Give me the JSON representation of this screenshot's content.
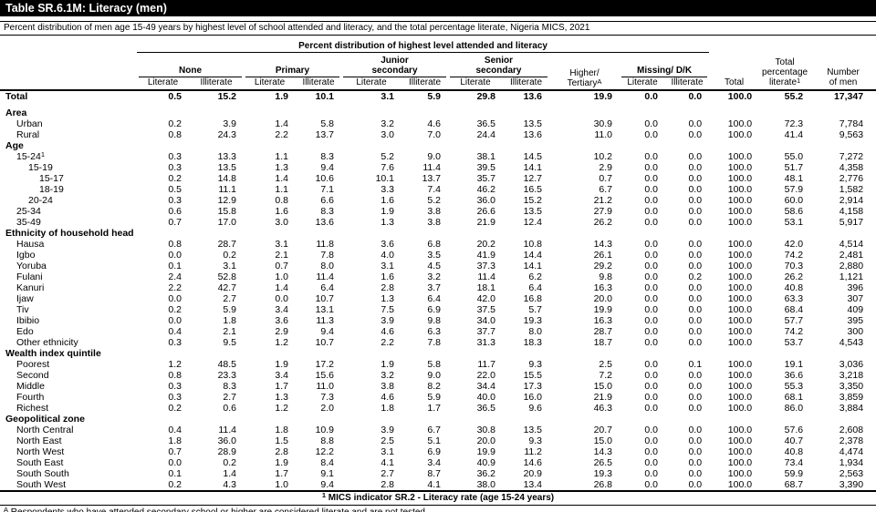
{
  "title": "Table SR.6.1M: Literacy (men)",
  "subtitle": "Percent distribution of men age 15-49 years by highest level of school attended and literacy, and the total percentage literate, Nigeria MICS, 2021",
  "header": {
    "span_title": "Percent distribution of highest level attended and literacy",
    "groups": [
      "None",
      "Primary",
      "Junior\nsecondary",
      "Senior\nsecondary"
    ],
    "missing_group": "Missing/ D/K",
    "higher_line1": "Higher/",
    "higher_line2": "Tertiary",
    "higher_sup": "A",
    "literate": "Literate",
    "illiterate": "Illiterate",
    "total": "Total",
    "pct_line1": "Total",
    "pct_line2": "percentage",
    "pct_line3": "literate",
    "pct_sup": "1",
    "num_line1": "Number",
    "num_line2": "of men"
  },
  "rows": [
    {
      "type": "total",
      "label": "Total",
      "values": [
        "0.5",
        "15.2",
        "1.9",
        "10.1",
        "3.1",
        "5.9",
        "29.8",
        "13.6",
        "19.9",
        "0.0",
        "0.0",
        "100.0",
        "55.2",
        "17,347"
      ]
    },
    {
      "type": "gap"
    },
    {
      "type": "section",
      "label": "Area"
    },
    {
      "type": "data",
      "indent": 1,
      "label": "Urban",
      "values": [
        "0.2",
        "3.9",
        "1.4",
        "5.8",
        "3.2",
        "4.6",
        "36.5",
        "13.5",
        "30.9",
        "0.0",
        "0.0",
        "100.0",
        "72.3",
        "7,784"
      ]
    },
    {
      "type": "data",
      "indent": 1,
      "label": "Rural",
      "values": [
        "0.8",
        "24.3",
        "2.2",
        "13.7",
        "3.0",
        "7.0",
        "24.4",
        "13.6",
        "11.0",
        "0.0",
        "0.0",
        "100.0",
        "41.4",
        "9,563"
      ]
    },
    {
      "type": "section",
      "label": "Age"
    },
    {
      "type": "data",
      "indent": 1,
      "label": "15-24",
      "sup": "1",
      "values": [
        "0.3",
        "13.3",
        "1.1",
        "8.3",
        "5.2",
        "9.0",
        "38.1",
        "14.5",
        "10.2",
        "0.0",
        "0.0",
        "100.0",
        "55.0",
        "7,272"
      ]
    },
    {
      "type": "data",
      "indent": 2,
      "label": "15-19",
      "values": [
        "0.3",
        "13.5",
        "1.3",
        "9.4",
        "7.6",
        "11.4",
        "39.5",
        "14.1",
        "2.9",
        "0.0",
        "0.0",
        "100.0",
        "51.7",
        "4,358"
      ]
    },
    {
      "type": "data",
      "indent": 3,
      "label": "15-17",
      "values": [
        "0.2",
        "14.8",
        "1.4",
        "10.6",
        "10.1",
        "13.7",
        "35.7",
        "12.7",
        "0.7",
        "0.0",
        "0.0",
        "100.0",
        "48.1",
        "2,776"
      ]
    },
    {
      "type": "data",
      "indent": 3,
      "label": "18-19",
      "values": [
        "0.5",
        "11.1",
        "1.1",
        "7.1",
        "3.3",
        "7.4",
        "46.2",
        "16.5",
        "6.7",
        "0.0",
        "0.0",
        "100.0",
        "57.9",
        "1,582"
      ]
    },
    {
      "type": "data",
      "indent": 2,
      "label": "20-24",
      "values": [
        "0.3",
        "12.9",
        "0.8",
        "6.6",
        "1.6",
        "5.2",
        "36.0",
        "15.2",
        "21.2",
        "0.0",
        "0.0",
        "100.0",
        "60.0",
        "2,914"
      ]
    },
    {
      "type": "data",
      "indent": 1,
      "label": "25-34",
      "values": [
        "0.6",
        "15.8",
        "1.6",
        "8.3",
        "1.9",
        "3.8",
        "26.6",
        "13.5",
        "27.9",
        "0.0",
        "0.0",
        "100.0",
        "58.6",
        "4,158"
      ]
    },
    {
      "type": "data",
      "indent": 1,
      "label": "35-49",
      "values": [
        "0.7",
        "17.0",
        "3.0",
        "13.6",
        "1.3",
        "3.8",
        "21.9",
        "12.4",
        "26.2",
        "0.0",
        "0.0",
        "100.0",
        "53.1",
        "5,917"
      ]
    },
    {
      "type": "section",
      "label": "Ethnicity of household head"
    },
    {
      "type": "data",
      "indent": 1,
      "label": "Hausa",
      "values": [
        "0.8",
        "28.7",
        "3.1",
        "11.8",
        "3.6",
        "6.8",
        "20.2",
        "10.8",
        "14.3",
        "0.0",
        "0.0",
        "100.0",
        "42.0",
        "4,514"
      ]
    },
    {
      "type": "data",
      "indent": 1,
      "label": "Igbo",
      "values": [
        "0.0",
        "0.2",
        "2.1",
        "7.8",
        "4.0",
        "3.5",
        "41.9",
        "14.4",
        "26.1",
        "0.0",
        "0.0",
        "100.0",
        "74.2",
        "2,481"
      ]
    },
    {
      "type": "data",
      "indent": 1,
      "label": "Yoruba",
      "values": [
        "0.1",
        "3.1",
        "0.7",
        "8.0",
        "3.1",
        "4.5",
        "37.3",
        "14.1",
        "29.2",
        "0.0",
        "0.0",
        "100.0",
        "70.3",
        "2,880"
      ]
    },
    {
      "type": "data",
      "indent": 1,
      "label": "Fulani",
      "values": [
        "2.4",
        "52.8",
        "1.0",
        "11.4",
        "1.6",
        "3.2",
        "11.4",
        "6.2",
        "9.8",
        "0.0",
        "0.2",
        "100.0",
        "26.2",
        "1,121"
      ]
    },
    {
      "type": "data",
      "indent": 1,
      "label": "Kanuri",
      "values": [
        "2.2",
        "42.7",
        "1.4",
        "6.4",
        "2.8",
        "3.7",
        "18.1",
        "6.4",
        "16.3",
        "0.0",
        "0.0",
        "100.0",
        "40.8",
        "396"
      ]
    },
    {
      "type": "data",
      "indent": 1,
      "label": "Ijaw",
      "values": [
        "0.0",
        "2.7",
        "0.0",
        "10.7",
        "1.3",
        "6.4",
        "42.0",
        "16.8",
        "20.0",
        "0.0",
        "0.0",
        "100.0",
        "63.3",
        "307"
      ]
    },
    {
      "type": "data",
      "indent": 1,
      "label": "Tiv",
      "values": [
        "0.2",
        "5.9",
        "3.4",
        "13.1",
        "7.5",
        "6.9",
        "37.5",
        "5.7",
        "19.9",
        "0.0",
        "0.0",
        "100.0",
        "68.4",
        "409"
      ]
    },
    {
      "type": "data",
      "indent": 1,
      "label": "Ibibio",
      "values": [
        "0.0",
        "1.8",
        "3.6",
        "11.3",
        "3.9",
        "9.8",
        "34.0",
        "19.3",
        "16.3",
        "0.0",
        "0.0",
        "100.0",
        "57.7",
        "395"
      ]
    },
    {
      "type": "data",
      "indent": 1,
      "label": "Edo",
      "values": [
        "0.4",
        "2.1",
        "2.9",
        "9.4",
        "4.6",
        "6.3",
        "37.7",
        "8.0",
        "28.7",
        "0.0",
        "0.0",
        "100.0",
        "74.2",
        "300"
      ]
    },
    {
      "type": "data",
      "indent": 1,
      "label": "Other ethnicity",
      "values": [
        "0.3",
        "9.5",
        "1.2",
        "10.7",
        "2.2",
        "7.8",
        "31.3",
        "18.3",
        "18.7",
        "0.0",
        "0.0",
        "100.0",
        "53.7",
        "4,543"
      ]
    },
    {
      "type": "section",
      "label": "Wealth index quintile"
    },
    {
      "type": "data",
      "indent": 1,
      "label": "Poorest",
      "values": [
        "1.2",
        "48.5",
        "1.9",
        "17.2",
        "1.9",
        "5.8",
        "11.7",
        "9.3",
        "2.5",
        "0.0",
        "0.1",
        "100.0",
        "19.1",
        "3,036"
      ]
    },
    {
      "type": "data",
      "indent": 1,
      "label": "Second",
      "values": [
        "0.8",
        "23.3",
        "3.4",
        "15.6",
        "3.2",
        "9.0",
        "22.0",
        "15.5",
        "7.2",
        "0.0",
        "0.0",
        "100.0",
        "36.6",
        "3,218"
      ]
    },
    {
      "type": "data",
      "indent": 1,
      "label": "Middle",
      "values": [
        "0.3",
        "8.3",
        "1.7",
        "11.0",
        "3.8",
        "8.2",
        "34.4",
        "17.3",
        "15.0",
        "0.0",
        "0.0",
        "100.0",
        "55.3",
        "3,350"
      ]
    },
    {
      "type": "data",
      "indent": 1,
      "label": "Fourth",
      "values": [
        "0.3",
        "2.7",
        "1.3",
        "7.3",
        "4.6",
        "5.9",
        "40.0",
        "16.0",
        "21.9",
        "0.0",
        "0.0",
        "100.0",
        "68.1",
        "3,859"
      ]
    },
    {
      "type": "data",
      "indent": 1,
      "label": "Richest",
      "values": [
        "0.2",
        "0.6",
        "1.2",
        "2.0",
        "1.8",
        "1.7",
        "36.5",
        "9.6",
        "46.3",
        "0.0",
        "0.0",
        "100.0",
        "86.0",
        "3,884"
      ]
    },
    {
      "type": "section",
      "label": "Geopolitical zone"
    },
    {
      "type": "data",
      "indent": 1,
      "label": "North Central",
      "values": [
        "0.4",
        "11.4",
        "1.8",
        "10.9",
        "3.9",
        "6.7",
        "30.8",
        "13.5",
        "20.7",
        "0.0",
        "0.0",
        "100.0",
        "57.6",
        "2,608"
      ]
    },
    {
      "type": "data",
      "indent": 1,
      "label": "North East",
      "values": [
        "1.8",
        "36.0",
        "1.5",
        "8.8",
        "2.5",
        "5.1",
        "20.0",
        "9.3",
        "15.0",
        "0.0",
        "0.0",
        "100.0",
        "40.7",
        "2,378"
      ]
    },
    {
      "type": "data",
      "indent": 1,
      "label": "North West",
      "values": [
        "0.7",
        "28.9",
        "2.8",
        "12.2",
        "3.1",
        "6.9",
        "19.9",
        "11.2",
        "14.3",
        "0.0",
        "0.0",
        "100.0",
        "40.8",
        "4,474"
      ]
    },
    {
      "type": "data",
      "indent": 1,
      "label": "South East",
      "values": [
        "0.0",
        "0.2",
        "1.9",
        "8.4",
        "4.1",
        "3.4",
        "40.9",
        "14.6",
        "26.5",
        "0.0",
        "0.0",
        "100.0",
        "73.4",
        "1,934"
      ]
    },
    {
      "type": "data",
      "indent": 1,
      "label": "South South",
      "values": [
        "0.1",
        "1.4",
        "1.7",
        "9.1",
        "2.7",
        "8.7",
        "36.2",
        "20.9",
        "19.3",
        "0.0",
        "0.0",
        "100.0",
        "59.9",
        "2,563"
      ]
    },
    {
      "type": "data",
      "indent": 1,
      "label": "South West",
      "values": [
        "0.2",
        "4.3",
        "1.0",
        "9.4",
        "2.8",
        "4.1",
        "38.0",
        "13.4",
        "26.8",
        "0.0",
        "0.0",
        "100.0",
        "68.7",
        "3,390"
      ]
    }
  ],
  "footnotes": {
    "indicator_sup": "1",
    "indicator": " MICS indicator SR.2 - Literacy rate (age 15-24 years)",
    "respondents_sup": "A",
    "respondents": " Respondents who have attended secondary school or higher are considered literate and are not tested."
  }
}
